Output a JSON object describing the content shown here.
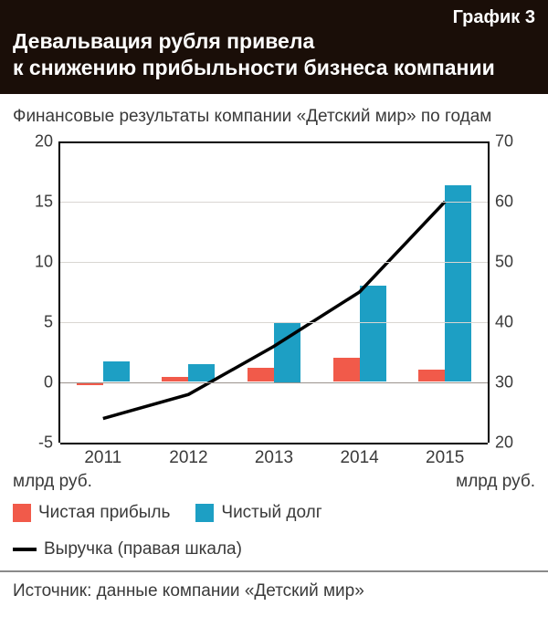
{
  "header": {
    "chart_label": "График 3",
    "title_line1": "Девальвация рубля привела",
    "title_line2": "к снижению прибыльности бизнеса компании",
    "bg": "#1a0e08",
    "fg": "#ffffff",
    "label_fontsize": 20,
    "title_fontsize": 23
  },
  "subtitle": {
    "text": "Финансовые результаты компании «Детский мир» по годам",
    "fontsize": 19
  },
  "chart": {
    "type": "grouped-bar+line",
    "categories": [
      "2011",
      "2012",
      "2013",
      "2014",
      "2015"
    ],
    "left_axis": {
      "min": -5,
      "max": 20,
      "step": 5,
      "unit_label": "млрд руб."
    },
    "right_axis": {
      "min": 20,
      "max": 70,
      "step": 10,
      "unit_label": "млрд руб."
    },
    "grid_color": "#d9d6d2",
    "axis_color": "#000000",
    "zero_line_color": "#9a938d",
    "bar_group_width": 0.62,
    "series": {
      "profit": {
        "label": "Чистая прибыль",
        "color": "#f15a4a",
        "values": [
          -0.3,
          0.4,
          1.2,
          2.0,
          1.0
        ]
      },
      "debt": {
        "label": "Чистый долг",
        "color": "#1d9fc4",
        "values": [
          1.7,
          1.5,
          5.0,
          8.0,
          16.3
        ]
      },
      "revenue": {
        "label": "Выручка (правая шкала)",
        "color": "#000000",
        "line_width": 3.5,
        "values": [
          24,
          28,
          36,
          45,
          60
        ]
      }
    }
  },
  "legend": {
    "border_color": "#8a8a8a"
  },
  "source": {
    "text": "Источник: данные компании «Детский мир»"
  }
}
